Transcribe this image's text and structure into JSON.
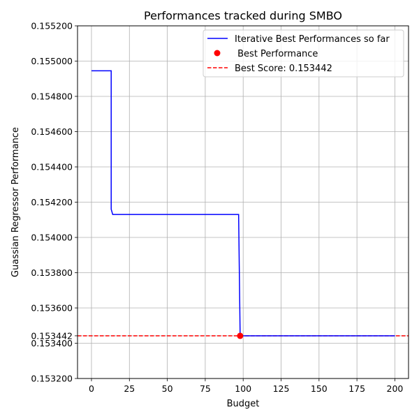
{
  "chart_data": {
    "type": "line",
    "title": "Performances tracked during SMBO",
    "xlabel": "Budget",
    "ylabel": "Guassian Regressor Performance",
    "xlim": [
      -9.2,
      209
    ],
    "ylim": [
      0.1532,
      0.1552
    ],
    "x_ticks": [
      0,
      25,
      50,
      75,
      100,
      125,
      150,
      175,
      200
    ],
    "x_tick_labels": [
      "0",
      "25",
      "50",
      "75",
      "100",
      "125",
      "150",
      "175",
      "200"
    ],
    "y_ticks": [
      0.1532,
      0.1534,
      0.153442,
      0.1536,
      0.1538,
      0.154,
      0.1542,
      0.1544,
      0.1546,
      0.1548,
      0.155,
      0.1552
    ],
    "y_tick_labels": [
      "0.153200",
      "0.153400",
      "0.153442",
      "0.153600",
      "0.153800",
      "0.154000",
      "0.154200",
      "0.154400",
      "0.154600",
      "0.154800",
      "0.155000",
      "0.155200"
    ],
    "grid": true,
    "legend_position": "top-right",
    "series": [
      {
        "name": "Iterative Best Performances so far",
        "kind": "step-line",
        "color": "#0000ff",
        "x": [
          0,
          13,
          13,
          14,
          14,
          97,
          97,
          98,
          98,
          200
        ],
        "y": [
          0.154945,
          0.154945,
          0.15416,
          0.15413,
          0.15413,
          0.15413,
          0.15413,
          0.153442,
          0.153442,
          0.153442
        ]
      },
      {
        "name": " Best Performance",
        "kind": "scatter",
        "color": "#ff0000",
        "x": [
          98
        ],
        "y": [
          0.153442
        ]
      },
      {
        "name": "Best Score: 0.153442",
        "kind": "hline",
        "color": "#ff0000",
        "y": 0.153442
      }
    ]
  }
}
